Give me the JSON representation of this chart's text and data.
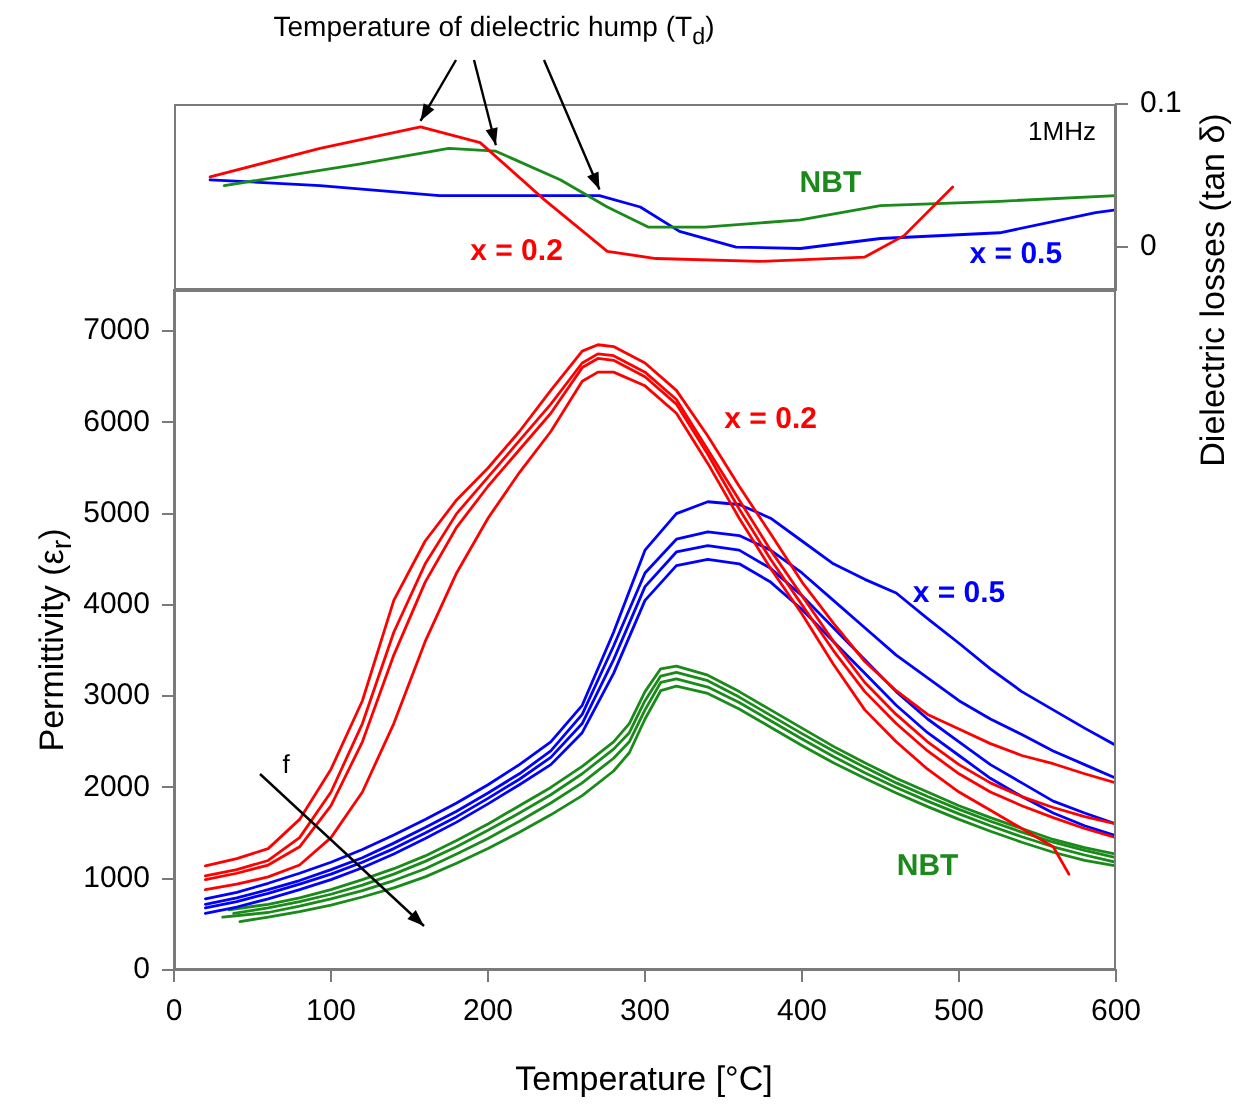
{
  "chart_data": [
    {
      "type": "line",
      "ylabel": "Dielectric losses (tan δ)",
      "annotations": [
        {
          "text": "Temperature of dielectric hump (T$_{d}$)",
          "x": 157,
          "y": 0.084
        },
        "1MHz"
      ],
      "xlim": [
        0,
        600
      ],
      "xticks": [
        0,
        100,
        200,
        300,
        400,
        500,
        600
      ],
      "ylim": [
        -0.03,
        0.1
      ],
      "yticks": [
        0,
        0.1
      ],
      "tick_labels": "y",
      "grid": false,
      "legend": false,
      "series": [
        {
          "name": "x = 0.2",
          "color": "#ff0000",
          "x": [
            23,
            93,
            157,
            195,
            236,
            276,
            307,
            373,
            440,
            465,
            496
          ],
          "values": [
            0.049,
            0.069,
            0.084,
            0.073,
            0.033,
            -0.003,
            -0.008,
            -0.01,
            -0.007,
            0.008,
            0.042
          ]
        },
        {
          "name": "NBT",
          "color": "#1a8a1a",
          "x": [
            32,
            118,
            175,
            205,
            246,
            276,
            302,
            338,
            399,
            450,
            526,
            600
          ],
          "values": [
            0.043,
            0.058,
            0.069,
            0.067,
            0.047,
            0.028,
            0.014,
            0.014,
            0.019,
            0.029,
            0.032,
            0.036
          ]
        },
        {
          "name": "x = 0.5",
          "color": "#0000ff",
          "x": [
            23,
            93,
            169,
            271,
            297,
            322,
            358,
            399,
            450,
            526,
            587,
            600
          ],
          "values": [
            0.047,
            0.043,
            0.036,
            0.036,
            0.028,
            0.011,
            0,
            -0.001,
            0.006,
            0.01,
            0.024,
            0.026
          ]
        }
      ]
    },
    {
      "type": "line",
      "xlabel": "Temperature [°C]",
      "ylabel": "Permittivity (ε$_{r}$)",
      "annotations": [
        "f"
      ],
      "xlim": [
        0,
        600
      ],
      "xticks": [
        0,
        100,
        200,
        300,
        400,
        500,
        600
      ],
      "ylim": [
        0,
        7450
      ],
      "yticks": [
        0,
        1000,
        2000,
        3000,
        4000,
        5000,
        6000,
        7000
      ],
      "grid": false,
      "legend": false,
      "series": [
        {
          "name": "x = 0.2",
          "color": "#ff0000",
          "x": [
            20,
            40,
            60,
            80,
            100,
            120,
            140,
            160,
            180,
            200,
            220,
            240,
            260,
            270,
            280,
            300,
            320,
            340,
            360,
            380,
            400,
            420,
            440,
            460,
            480,
            500,
            520,
            540,
            560,
            580,
            600
          ],
          "values": [
            1140,
            1220,
            1330,
            1650,
            2200,
            2950,
            4050,
            4700,
            5150,
            5500,
            5900,
            6350,
            6780,
            6850,
            6830,
            6650,
            6350,
            5850,
            5300,
            4780,
            4250,
            3800,
            3380,
            3060,
            2800,
            2640,
            2480,
            2350,
            2260,
            2150,
            2050
          ]
        },
        {
          "color": "#ff0000",
          "x": [
            20,
            40,
            60,
            80,
            100,
            120,
            140,
            160,
            180,
            200,
            220,
            240,
            260,
            270,
            280,
            300,
            320,
            340,
            360,
            380,
            400,
            420,
            440,
            460,
            480,
            500,
            520,
            540,
            560,
            580,
            600
          ],
          "values": [
            1030,
            1100,
            1200,
            1450,
            1950,
            2700,
            3700,
            4450,
            5000,
            5400,
            5800,
            6200,
            6650,
            6750,
            6730,
            6550,
            6250,
            5700,
            5150,
            4600,
            4100,
            3600,
            3150,
            2800,
            2500,
            2250,
            2050,
            1900,
            1780,
            1680,
            1600
          ]
        },
        {
          "color": "#ff0000",
          "x": [
            20,
            40,
            60,
            80,
            100,
            120,
            140,
            160,
            180,
            200,
            220,
            240,
            260,
            270,
            280,
            300,
            320,
            340,
            360,
            380,
            400,
            420,
            440,
            460,
            480,
            500,
            520,
            540,
            560,
            580,
            600
          ],
          "values": [
            990,
            1060,
            1150,
            1350,
            1800,
            2500,
            3450,
            4250,
            4850,
            5300,
            5700,
            6100,
            6600,
            6700,
            6680,
            6500,
            6200,
            5650,
            5050,
            4500,
            4000,
            3500,
            3050,
            2700,
            2400,
            2150,
            1950,
            1800,
            1670,
            1550,
            1450
          ]
        },
        {
          "color": "#ff0000",
          "x": [
            20,
            40,
            60,
            80,
            100,
            120,
            140,
            160,
            180,
            200,
            220,
            240,
            260,
            270,
            280,
            300,
            320,
            340,
            360,
            380,
            400,
            420,
            440,
            460,
            480,
            500,
            520,
            540,
            560,
            570
          ],
          "values": [
            880,
            940,
            1020,
            1150,
            1450,
            1950,
            2700,
            3600,
            4350,
            4950,
            5450,
            5900,
            6450,
            6550,
            6550,
            6400,
            6100,
            5550,
            4950,
            4400,
            3900,
            3350,
            2850,
            2500,
            2200,
            1950,
            1750,
            1550,
            1350,
            1050
          ]
        },
        {
          "name": "x = 0.5",
          "color": "#0000ff",
          "x": [
            20,
            40,
            60,
            80,
            100,
            120,
            140,
            160,
            180,
            200,
            220,
            240,
            260,
            280,
            300,
            320,
            340,
            360,
            380,
            400,
            420,
            440,
            460,
            480,
            500,
            520,
            540,
            560,
            580,
            600
          ],
          "values": [
            780,
            850,
            950,
            1060,
            1180,
            1320,
            1480,
            1650,
            1830,
            2030,
            2250,
            2500,
            2900,
            3700,
            4600,
            5000,
            5130,
            5100,
            4950,
            4700,
            4450,
            4280,
            4130,
            3850,
            3580,
            3300,
            3050,
            2850,
            2650,
            2460
          ]
        },
        {
          "color": "#0000ff",
          "x": [
            20,
            40,
            60,
            80,
            100,
            120,
            140,
            160,
            180,
            200,
            220,
            240,
            260,
            280,
            300,
            320,
            340,
            360,
            380,
            400,
            420,
            440,
            460,
            480,
            500,
            520,
            540,
            560,
            580,
            600
          ],
          "values": [
            720,
            790,
            880,
            980,
            1100,
            1230,
            1390,
            1560,
            1740,
            1940,
            2150,
            2400,
            2800,
            3550,
            4350,
            4720,
            4800,
            4760,
            4600,
            4350,
            4050,
            3750,
            3450,
            3200,
            2950,
            2750,
            2580,
            2400,
            2250,
            2100
          ]
        },
        {
          "color": "#0000ff",
          "x": [
            20,
            40,
            60,
            80,
            100,
            120,
            140,
            160,
            180,
            200,
            220,
            240,
            260,
            280,
            300,
            320,
            340,
            360,
            380,
            400,
            420,
            440,
            460,
            480,
            500,
            520,
            540,
            560,
            580,
            600
          ],
          "values": [
            680,
            750,
            840,
            940,
            1050,
            1180,
            1330,
            1500,
            1680,
            1880,
            2090,
            2330,
            2700,
            3400,
            4200,
            4580,
            4650,
            4600,
            4400,
            4100,
            3750,
            3400,
            3050,
            2750,
            2500,
            2250,
            2050,
            1850,
            1720,
            1600
          ]
        },
        {
          "color": "#0000ff",
          "x": [
            20,
            40,
            60,
            80,
            100,
            120,
            140,
            160,
            180,
            200,
            220,
            240,
            260,
            280,
            300,
            320,
            340,
            360,
            380,
            400,
            420,
            440,
            460,
            480,
            500,
            520,
            540,
            560,
            580,
            600
          ],
          "values": [
            620,
            690,
            780,
            880,
            990,
            1120,
            1270,
            1440,
            1620,
            1820,
            2030,
            2250,
            2600,
            3250,
            4050,
            4430,
            4500,
            4450,
            4250,
            3950,
            3600,
            3250,
            2900,
            2600,
            2350,
            2100,
            1900,
            1720,
            1580,
            1470
          ]
        },
        {
          "color": "#1a8a1a",
          "x": [
            35,
            60,
            80,
            100,
            120,
            140,
            160,
            180,
            200,
            220,
            240,
            260,
            280,
            290,
            300,
            310,
            320,
            340,
            360,
            380,
            400,
            420,
            440,
            460,
            480,
            500,
            520,
            540,
            560,
            580,
            600
          ],
          "values": [
            660,
            720,
            790,
            880,
            990,
            1110,
            1250,
            1420,
            1600,
            1800,
            2000,
            2230,
            2500,
            2700,
            3050,
            3300,
            3330,
            3230,
            3050,
            2850,
            2650,
            2450,
            2270,
            2100,
            1950,
            1800,
            1670,
            1550,
            1430,
            1340,
            1270
          ]
        },
        {
          "color": "#1a8a1a",
          "x": [
            38,
            60,
            80,
            100,
            120,
            140,
            160,
            180,
            200,
            220,
            240,
            260,
            280,
            290,
            300,
            310,
            320,
            340,
            360,
            380,
            400,
            420,
            440,
            460,
            480,
            500,
            520,
            540,
            560,
            580,
            600
          ],
          "values": [
            620,
            680,
            750,
            830,
            930,
            1050,
            1190,
            1350,
            1530,
            1720,
            1920,
            2150,
            2420,
            2600,
            2950,
            3220,
            3260,
            3170,
            2990,
            2790,
            2590,
            2400,
            2220,
            2050,
            1900,
            1760,
            1630,
            1510,
            1400,
            1310,
            1230
          ]
        },
        {
          "color": "#1a8a1a",
          "x": [
            31,
            60,
            80,
            100,
            120,
            140,
            160,
            180,
            200,
            220,
            240,
            260,
            280,
            290,
            300,
            310,
            320,
            340,
            360,
            380,
            400,
            420,
            440,
            460,
            480,
            500,
            520,
            540,
            560,
            580,
            600
          ],
          "values": [
            580,
            630,
            700,
            780,
            870,
            980,
            1110,
            1270,
            1440,
            1630,
            1830,
            2050,
            2320,
            2500,
            2850,
            3150,
            3190,
            3100,
            2930,
            2730,
            2530,
            2340,
            2160,
            2000,
            1850,
            1710,
            1580,
            1460,
            1350,
            1260,
            1180
          ]
        },
        {
          "name": "NBT",
          "color": "#1a8a1a",
          "x": [
            42,
            60,
            80,
            100,
            120,
            140,
            160,
            180,
            200,
            220,
            240,
            260,
            280,
            290,
            300,
            310,
            320,
            340,
            360,
            380,
            400,
            420,
            440,
            460,
            480,
            500,
            520,
            540,
            560,
            580,
            600
          ],
          "values": [
            530,
            580,
            640,
            710,
            800,
            900,
            1020,
            1170,
            1330,
            1510,
            1700,
            1910,
            2180,
            2380,
            2750,
            3060,
            3110,
            3030,
            2860,
            2660,
            2460,
            2270,
            2100,
            1940,
            1790,
            1650,
            1520,
            1400,
            1290,
            1200,
            1140
          ]
        }
      ]
    }
  ]
}
